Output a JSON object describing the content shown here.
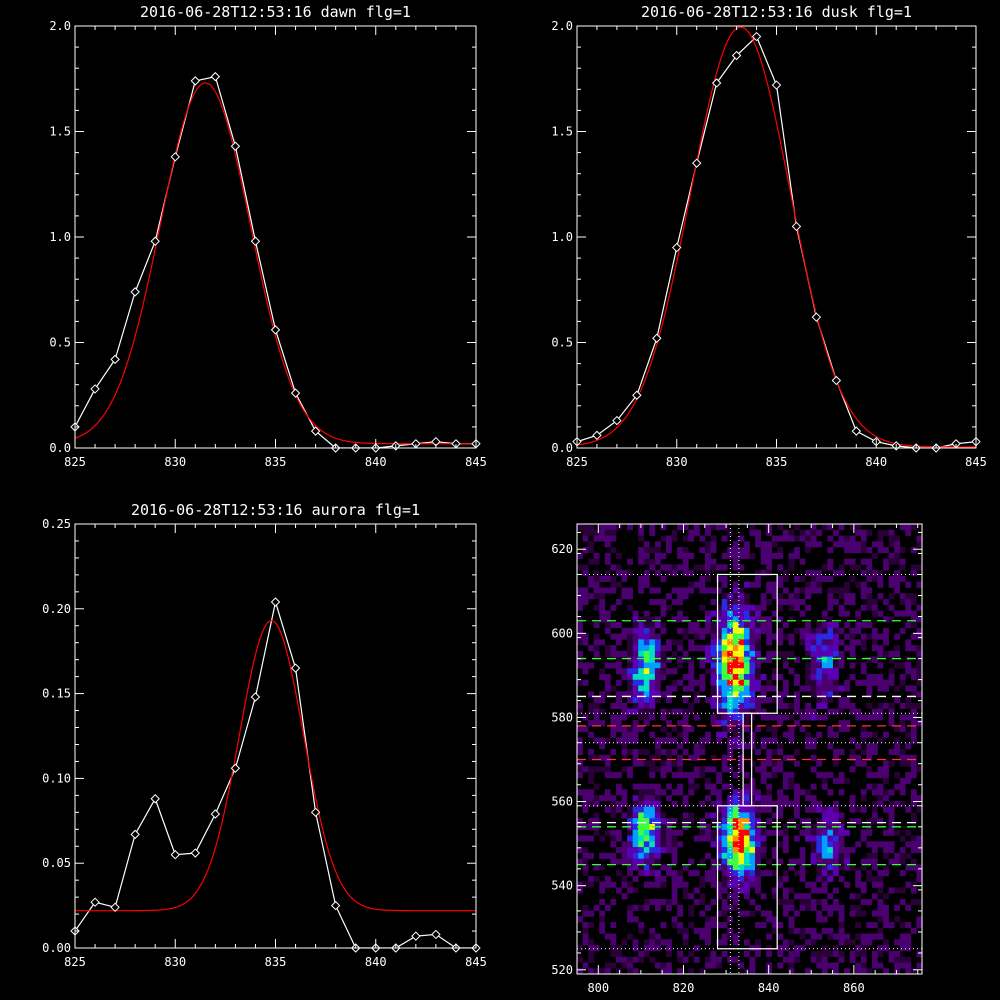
{
  "chart_data": [
    {
      "type": "line",
      "title": "2016-06-28T12:53:16 dawn flg=1",
      "xlim": [
        825,
        845
      ],
      "ylim": [
        0,
        2.0
      ],
      "xticks": [
        825,
        830,
        835,
        840,
        845
      ],
      "xtick_labels": [
        "825",
        "830",
        "835",
        "840",
        "845"
      ],
      "yticks": [
        0,
        0.5,
        1.0,
        1.5,
        2.0
      ],
      "ytick_labels": [
        "0.0",
        "0.5",
        "1.0",
        "1.5",
        "2.0"
      ],
      "grid": false,
      "series": [
        {
          "color": "#ffffff",
          "markers": "diamond",
          "x": [
            825,
            826,
            827,
            828,
            829,
            830,
            831,
            832,
            833,
            834,
            835,
            836,
            837,
            838,
            839,
            840,
            841,
            842,
            843,
            844,
            845
          ],
          "y": [
            0.1,
            0.28,
            0.42,
            0.74,
            0.98,
            1.38,
            1.74,
            1.76,
            1.43,
            0.98,
            0.56,
            0.26,
            0.08,
            0.0,
            0.0,
            0.0,
            0.01,
            0.02,
            0.03,
            0.02,
            0.02
          ]
        },
        {
          "color": "#ff0000",
          "markers": "none",
          "model": {
            "kind": "gaussian",
            "amplitude": 1.71,
            "center": 831.5,
            "sigma": 2.25,
            "baseline": 0.02
          }
        }
      ]
    },
    {
      "type": "line",
      "title": "2016-06-28T12:53:16 dusk flg=1",
      "xlim": [
        825,
        845
      ],
      "ylim": [
        0,
        2.0
      ],
      "xticks": [
        825,
        830,
        835,
        840,
        845
      ],
      "xtick_labels": [
        "825",
        "830",
        "835",
        "840",
        "845"
      ],
      "yticks": [
        0,
        0.5,
        1.0,
        1.5,
        2.0
      ],
      "ytick_labels": [
        "0.0",
        "0.5",
        "1.0",
        "1.5",
        "2.0"
      ],
      "grid": false,
      "series": [
        {
          "color": "#ffffff",
          "markers": "diamond",
          "x": [
            825,
            826,
            827,
            828,
            829,
            830,
            831,
            832,
            833,
            834,
            835,
            836,
            837,
            838,
            839,
            840,
            841,
            842,
            843,
            844,
            845
          ],
          "y": [
            0.03,
            0.06,
            0.13,
            0.25,
            0.52,
            0.95,
            1.35,
            1.73,
            1.86,
            1.95,
            1.72,
            1.05,
            0.62,
            0.32,
            0.08,
            0.03,
            0.01,
            0.0,
            0.0,
            0.02,
            0.03
          ]
        },
        {
          "color": "#ff0000",
          "markers": "none",
          "model": {
            "kind": "gaussian",
            "amplitude": 1.99,
            "center": 833.2,
            "sigma": 2.5,
            "baseline": 0.005
          }
        }
      ]
    },
    {
      "type": "line",
      "title": "2016-06-28T12:53:16 aurora flg=1",
      "xlim": [
        825,
        845
      ],
      "ylim": [
        0,
        0.25
      ],
      "xticks": [
        825,
        830,
        835,
        840,
        845
      ],
      "xtick_labels": [
        "825",
        "830",
        "835",
        "840",
        "845"
      ],
      "yticks": [
        0,
        0.05,
        0.1,
        0.15,
        0.2,
        0.25
      ],
      "ytick_labels": [
        "0.00",
        "0.05",
        "0.10",
        "0.15",
        "0.20",
        "0.25"
      ],
      "grid": false,
      "series": [
        {
          "color": "#ffffff",
          "markers": "diamond",
          "x": [
            825,
            826,
            827,
            828,
            829,
            830,
            831,
            832,
            833,
            834,
            835,
            836,
            837,
            838,
            839,
            840,
            841,
            842,
            843,
            844,
            845
          ],
          "y": [
            0.01,
            0.027,
            0.024,
            0.067,
            0.088,
            0.055,
            0.056,
            0.079,
            0.106,
            0.148,
            0.204,
            0.165,
            0.08,
            0.025,
            0.0,
            0.0,
            0.0,
            0.007,
            0.008,
            0.0,
            0.0
          ]
        },
        {
          "color": "#ff0000",
          "markers": "none",
          "model": {
            "kind": "gaussian",
            "amplitude": 0.171,
            "center": 834.8,
            "sigma": 1.6,
            "baseline": 0.022
          }
        }
      ]
    },
    {
      "type": "heatmap",
      "title": "",
      "xlim": [
        795,
        876
      ],
      "ylim": [
        519,
        626
      ],
      "xticks": [
        800,
        820,
        840,
        860
      ],
      "xtick_labels": [
        "800",
        "820",
        "840",
        "860"
      ],
      "yticks": [
        520,
        540,
        560,
        580,
        600,
        620
      ],
      "ytick_labels": [
        "520",
        "540",
        "560",
        "580",
        "600",
        "620"
      ],
      "colormap": [
        "#000000",
        "#2a0038",
        "#4b0070",
        "#5a00b0",
        "#2a2ae0",
        "#00a0ff",
        "#00e0c0",
        "#40ff40",
        "#f0ff00",
        "#ff9000",
        "#ff0000"
      ],
      "blobs": [
        {
          "x": 811,
          "y": 592,
          "amp": 0.55,
          "sx": 2.3,
          "sy": 6.5
        },
        {
          "x": 811,
          "y": 553,
          "amp": 0.65,
          "sx": 2.3,
          "sy": 5.0
        },
        {
          "x": 832,
          "y": 593,
          "amp": 0.95,
          "sx": 2.8,
          "sy": 8.0
        },
        {
          "x": 833,
          "y": 551,
          "amp": 1.0,
          "sx": 2.8,
          "sy": 5.5
        },
        {
          "x": 853,
          "y": 593,
          "amp": 0.35,
          "sx": 2.3,
          "sy": 6.5
        },
        {
          "x": 854,
          "y": 550,
          "amp": 0.4,
          "sx": 2.5,
          "sy": 4.5
        }
      ],
      "boxes": [
        {
          "x0": 828,
          "x1": 842,
          "y0": 581,
          "y1": 614
        },
        {
          "x0": 828,
          "x1": 842,
          "y0": 525,
          "y1": 559
        }
      ],
      "connector": {
        "x0": 834,
        "x1": 836,
        "y0": 559,
        "y1": 581
      },
      "hlines": [
        {
          "y": 614,
          "style": "dotted",
          "color": "#ffffff"
        },
        {
          "y": 603,
          "style": "dashed",
          "color": "#33ff33"
        },
        {
          "y": 594,
          "style": "dashed",
          "color": "#33ff33"
        },
        {
          "y": 585,
          "style": "dashed",
          "color": "#ffffff"
        },
        {
          "y": 581,
          "style": "dotted",
          "color": "#ffffff"
        },
        {
          "y": 578,
          "style": "dashed",
          "color": "#ff3333"
        },
        {
          "y": 574,
          "style": "dotted",
          "color": "#ffffff"
        },
        {
          "y": 570,
          "style": "dashed",
          "color": "#ff3333"
        },
        {
          "y": 559,
          "style": "dotted",
          "color": "#ffffff"
        },
        {
          "y": 555,
          "style": "dashed",
          "color": "#ffffff"
        },
        {
          "y": 554,
          "style": "dashed",
          "color": "#33ff33"
        },
        {
          "y": 545,
          "style": "dashed",
          "color": "#33ff33"
        },
        {
          "y": 525,
          "style": "dotted",
          "color": "#ffffff"
        }
      ],
      "vlines": [
        {
          "x": 831,
          "style": "dotted",
          "color": "#ffffff"
        },
        {
          "x": 833,
          "style": "dotted",
          "color": "#ffffff"
        }
      ]
    }
  ]
}
